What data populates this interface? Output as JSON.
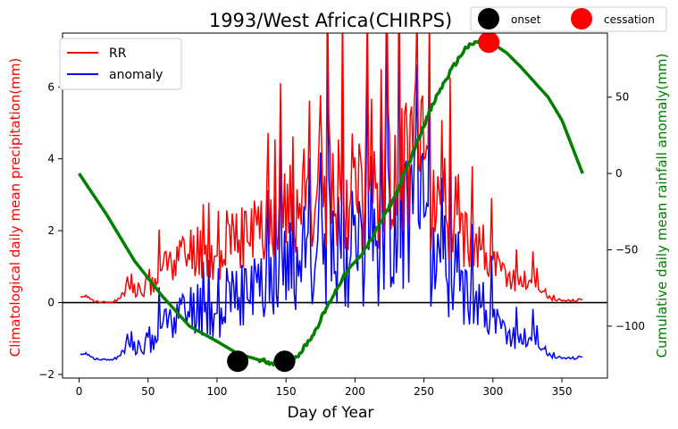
{
  "chart_data": {
    "type": "line",
    "title": "1993/West Africa(CHIRPS)",
    "xlabel": "Day of Year",
    "ylabel_left": "Climatological daily mean precipitation(mm)",
    "ylabel_right": "Cumulative daily mean rainfall anomaly(mm)",
    "xlim": [
      -12,
      383
    ],
    "ylim_left": [
      -2.1,
      7.5
    ],
    "ylim_right": [
      -134,
      92
    ],
    "x_ticks": [
      0,
      50,
      100,
      150,
      200,
      250,
      300,
      350
    ],
    "y_ticks_left": [
      -2,
      0,
      2,
      4,
      6
    ],
    "y_ticks_right": [
      -100,
      -50,
      0,
      50
    ],
    "zero_line": 0,
    "colors": {
      "RR": "#ff0000",
      "anomaly": "#0000ff",
      "cumulative": "#008000",
      "onset": "#000000",
      "cessation": "#ff0000"
    },
    "legend_left": {
      "placement": "upper-left",
      "entries": [
        "RR",
        "anomaly"
      ]
    },
    "legend_top": {
      "placement": "top-right",
      "entries": [
        "onset",
        "cessation"
      ]
    },
    "series_rr_anchors": {
      "x": [
        1,
        5,
        10,
        15,
        20,
        25,
        30,
        35,
        40,
        45,
        50,
        55,
        60,
        65,
        70,
        75,
        80,
        85,
        90,
        95,
        100,
        105,
        110,
        115,
        120,
        125,
        130,
        135,
        140,
        145,
        150,
        155,
        160,
        165,
        170,
        175,
        180,
        185,
        190,
        195,
        200,
        205,
        210,
        215,
        220,
        225,
        230,
        235,
        240,
        245,
        250,
        255,
        260,
        265,
        270,
        275,
        280,
        285,
        290,
        295,
        300,
        305,
        310,
        315,
        320,
        325,
        330,
        335,
        340,
        345,
        350,
        355,
        360,
        365
      ],
      "y": [
        0.15,
        0.2,
        0.05,
        0.0,
        0.0,
        0.02,
        0.1,
        0.5,
        0.2,
        0.3,
        0.4,
        0.5,
        0.9,
        1.1,
        1.3,
        1.2,
        1.3,
        1.5,
        1.3,
        1.2,
        1.0,
        1.3,
        1.5,
        1.6,
        1.8,
        1.8,
        2.0,
        2.2,
        2.5,
        2.4,
        2.2,
        2.5,
        2.6,
        2.8,
        2.7,
        2.9,
        3.1,
        3.4,
        3.2,
        3.0,
        3.0,
        3.1,
        3.4,
        3.0,
        3.2,
        3.6,
        3.9,
        3.8,
        4.0,
        3.9,
        3.4,
        3.0,
        2.7,
        2.6,
        2.4,
        2.2,
        2.0,
        1.8,
        1.5,
        1.3,
        1.0,
        0.8,
        0.7,
        0.6,
        0.55,
        0.6,
        0.5,
        0.4,
        0.15,
        0.1,
        0.05,
        0.05,
        0.05,
        0.1
      ]
    },
    "series_cumulative_anchors": {
      "x": [
        0,
        20,
        40,
        60,
        80,
        100,
        115,
        130,
        140,
        149,
        160,
        170,
        180,
        190,
        200,
        210,
        220,
        230,
        240,
        250,
        260,
        270,
        280,
        290,
        297,
        310,
        320,
        330,
        340,
        350,
        365
      ],
      "y": [
        0,
        -27,
        -57,
        -80,
        -100,
        -110,
        -118,
        -122,
        -124,
        -124,
        -118,
        -105,
        -87,
        -70,
        -58,
        -46,
        -30,
        -13,
        9,
        32,
        52,
        68,
        82,
        87,
        87,
        79,
        70,
        60,
        50,
        35,
        0
      ]
    },
    "onset": {
      "x": 115,
      "y_right": -123
    },
    "onset2": {
      "x": 149,
      "y_right": -123
    },
    "cessation": {
      "x": 297,
      "y_right": 86
    }
  }
}
